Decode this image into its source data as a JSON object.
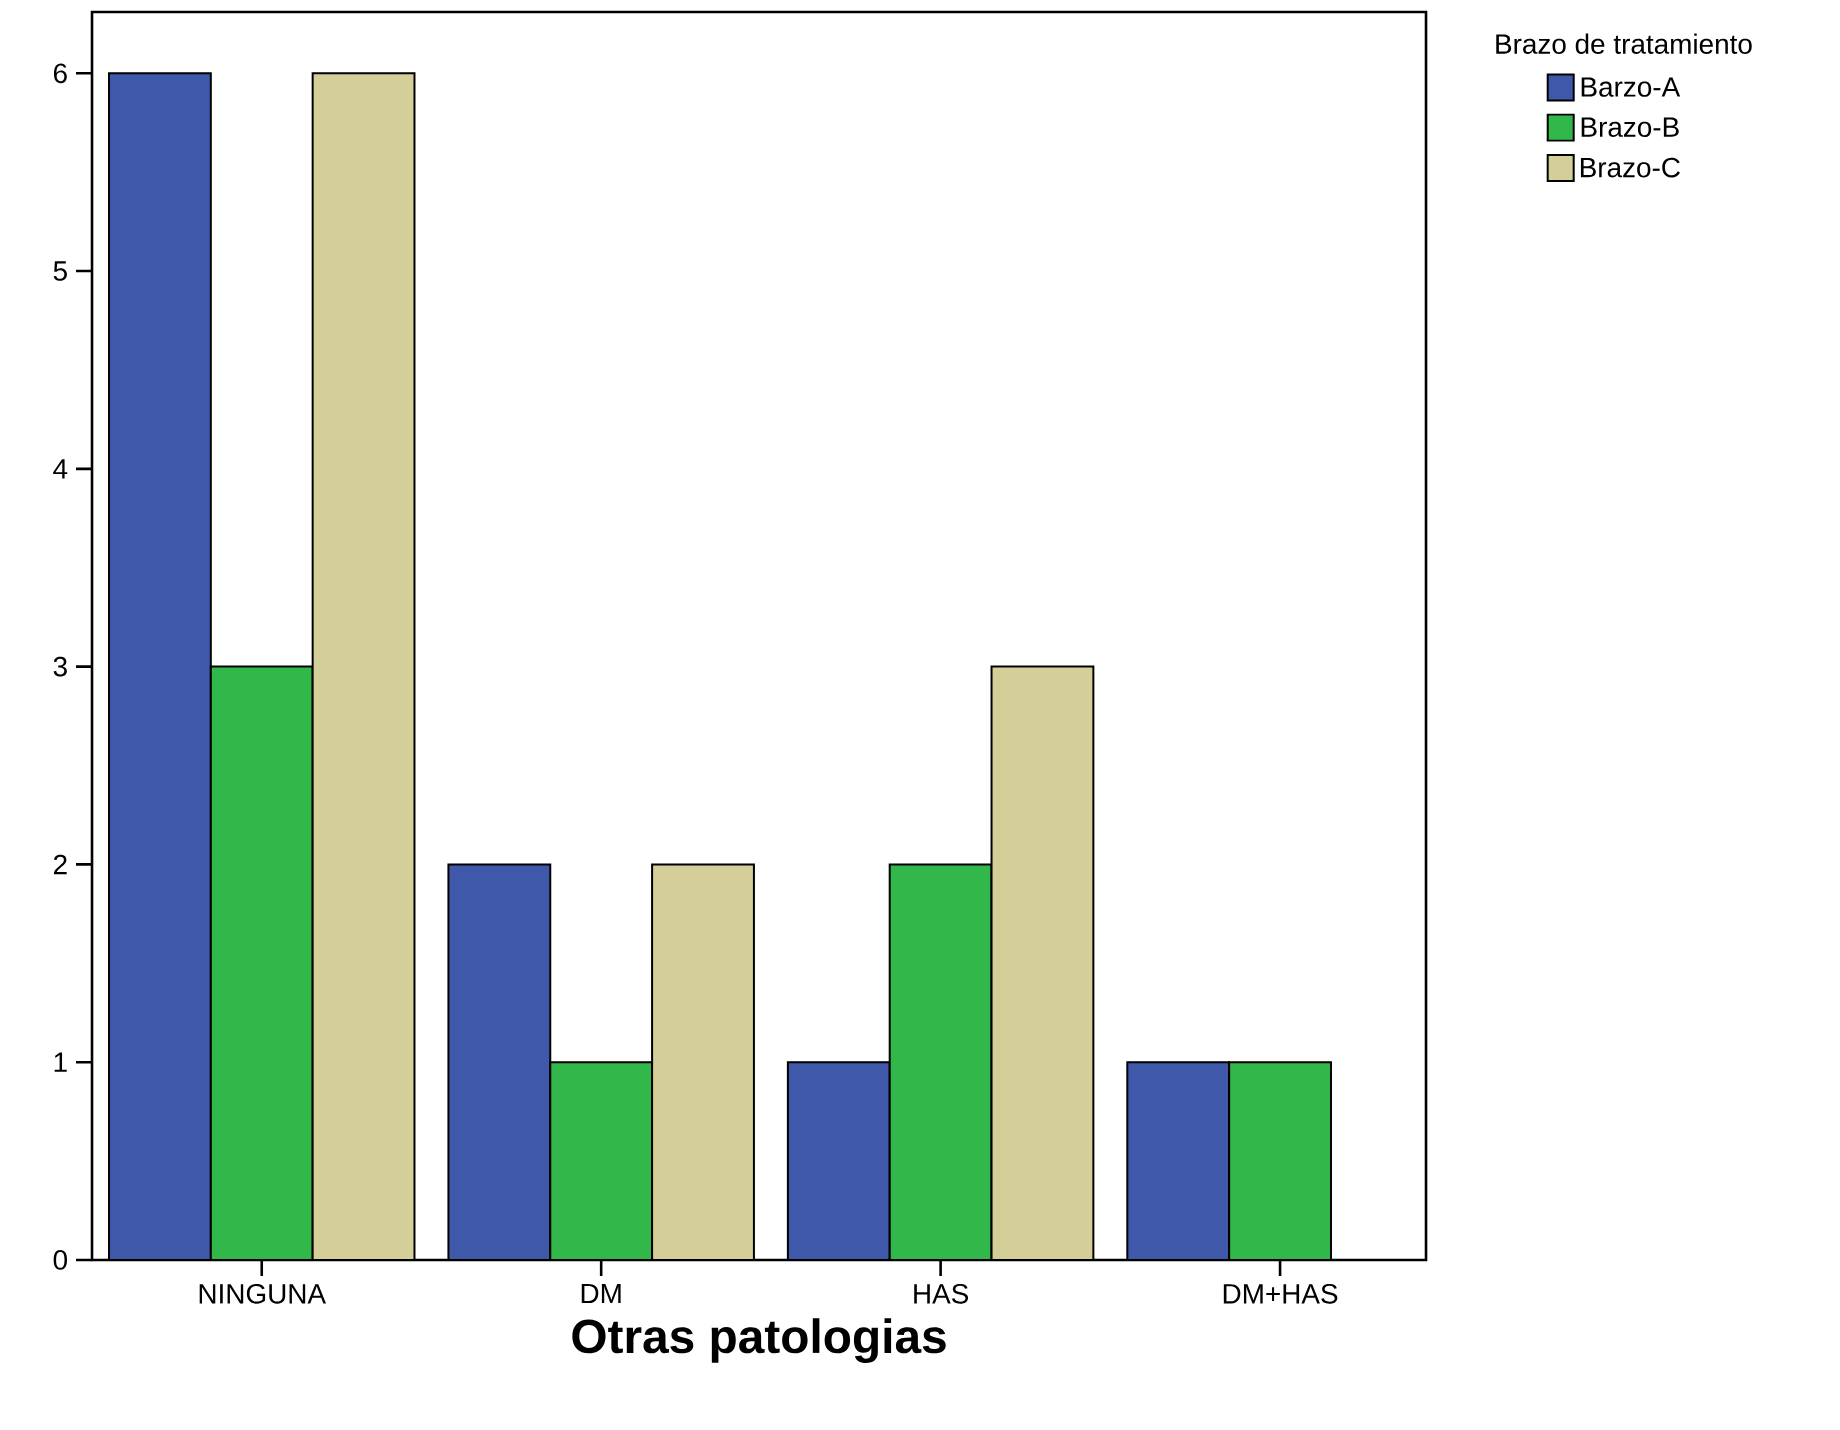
{
  "chart_data": {
    "type": "bar",
    "xlabel": "Otras patologias",
    "legend_title": "Brazo de tratamiento",
    "categories": [
      "NINGUNA",
      "DM",
      "HAS",
      "DM+HAS"
    ],
    "series": [
      {
        "name": "Barzo-A",
        "color": "#3f58aa",
        "values": [
          6,
          2,
          1,
          1
        ]
      },
      {
        "name": "Brazo-B",
        "color": "#32b84a",
        "values": [
          3,
          1,
          2,
          1
        ]
      },
      {
        "name": "Brazo-C",
        "color": "#d4cf98",
        "values": [
          6,
          2,
          3,
          null
        ]
      }
    ],
    "ylim": [
      0,
      6.31
    ],
    "yticks": [
      0,
      1,
      2,
      3,
      4,
      5,
      6
    ],
    "grid": false,
    "legend": "top right"
  }
}
